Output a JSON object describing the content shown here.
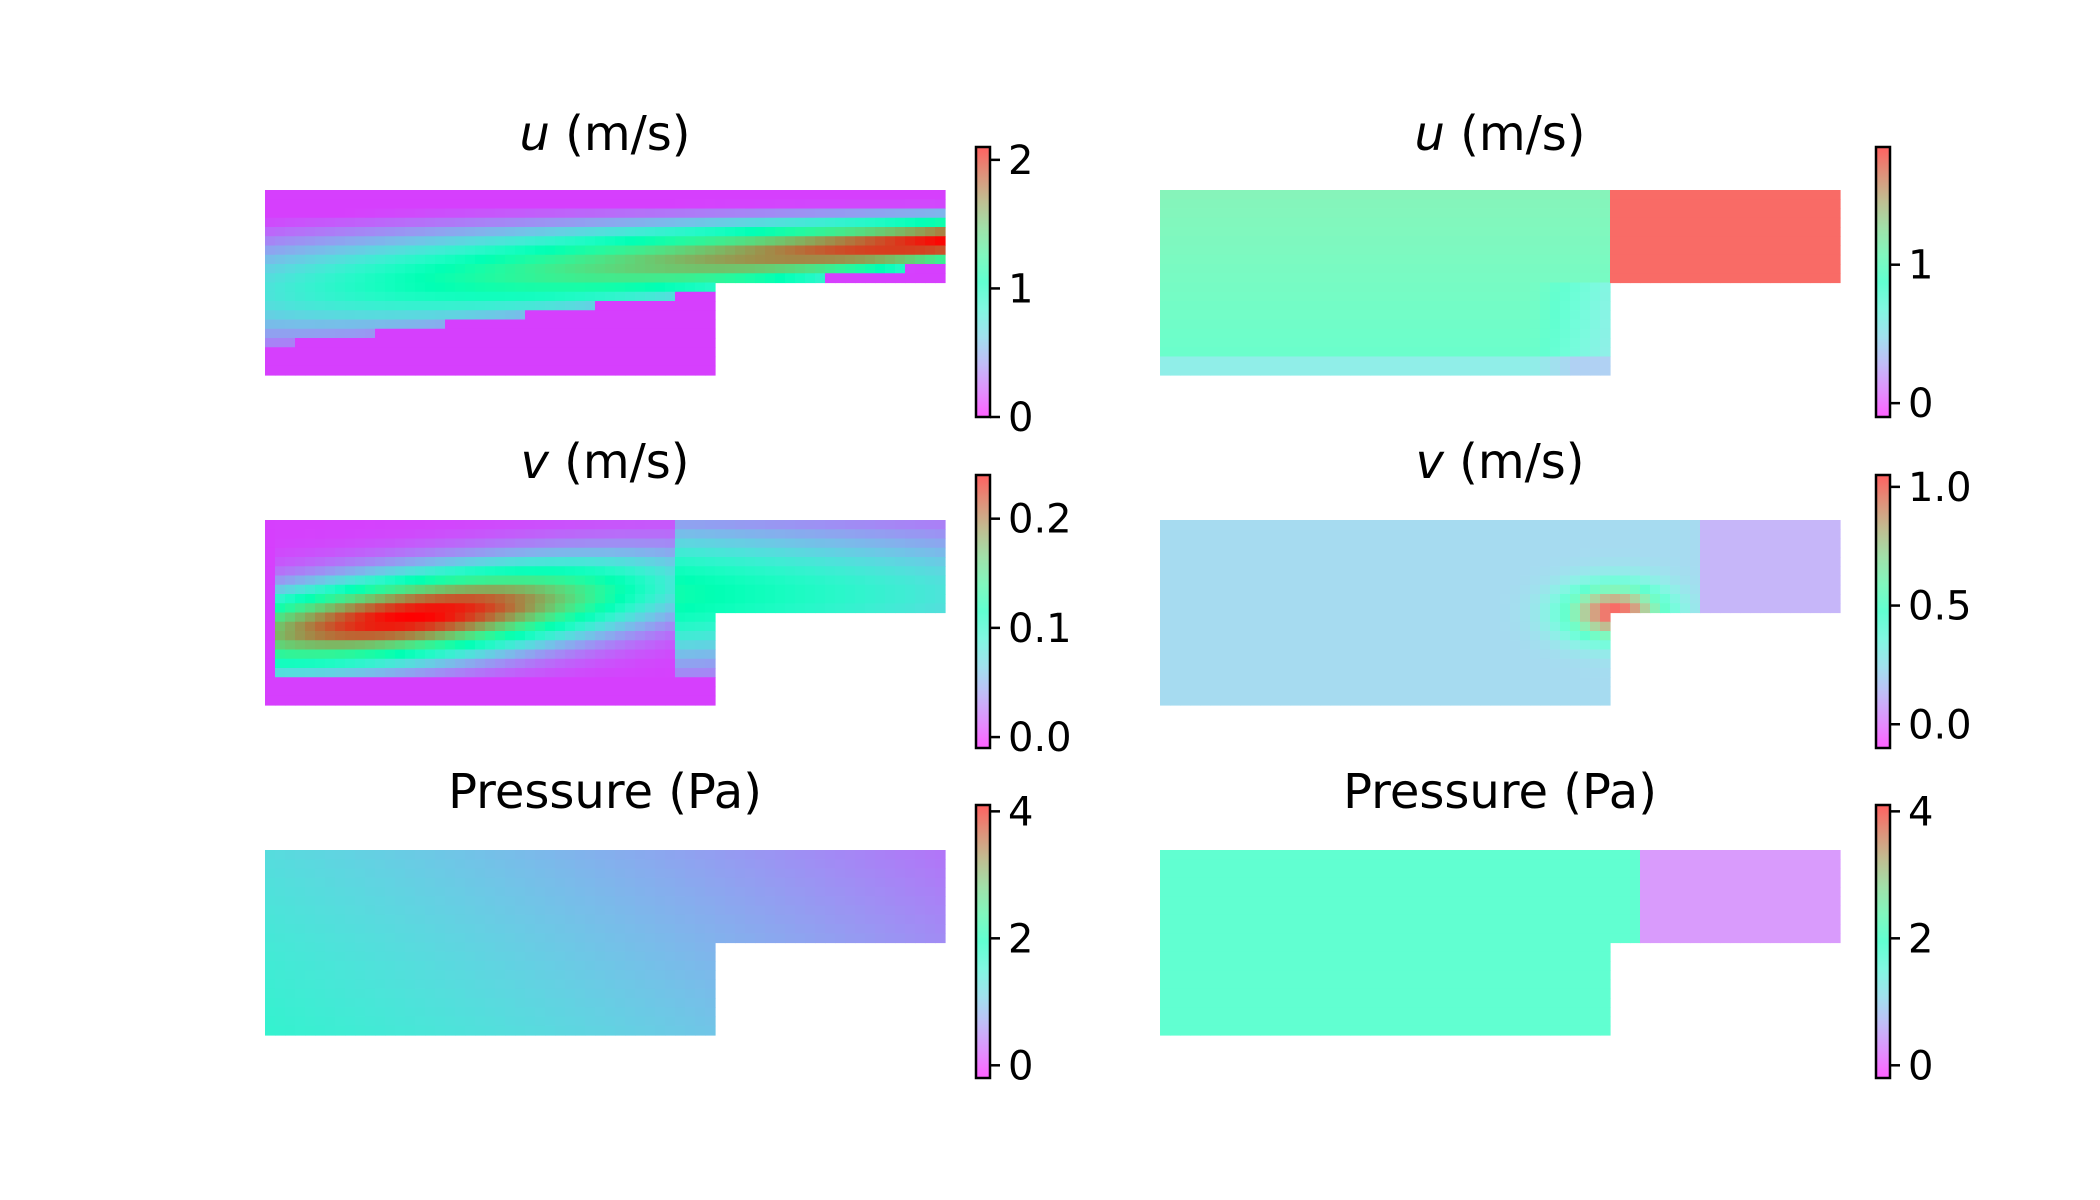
{
  "chart_data": [
    {
      "type": "heatmap",
      "panel": "left-top",
      "title_var": "u",
      "title_unit": " (m/s)",
      "colormap": "rainbow",
      "colorbar": {
        "min": 0,
        "max": 2.1,
        "ticks": [
          0,
          1,
          2
        ],
        "tick_labels": [
          "0",
          "1",
          "2"
        ]
      },
      "field": "jet",
      "value_max": 2.1
    },
    {
      "type": "heatmap",
      "panel": "right-top",
      "title_var": "u",
      "title_unit": " (m/s)",
      "colormap": "rainbow",
      "colorbar": {
        "min": -0.1,
        "max": 1.85,
        "ticks": [
          0,
          1
        ],
        "tick_labels": [
          "0",
          "1"
        ]
      },
      "field": "pinn_u",
      "value_max": 1.85
    },
    {
      "type": "heatmap",
      "panel": "left-middle",
      "title_var": "v",
      "title_unit": " (m/s)",
      "colormap": "rainbow",
      "colorbar": {
        "min": -0.01,
        "max": 0.24,
        "ticks": [
          0.0,
          0.1,
          0.2
        ],
        "tick_labels": [
          "0.0",
          "0.1",
          "0.2"
        ]
      },
      "field": "vortex",
      "value_max": 0.23
    },
    {
      "type": "heatmap",
      "panel": "right-middle",
      "title_var": "v",
      "title_unit": " (m/s)",
      "colormap": "rainbow",
      "colorbar": {
        "min": -0.1,
        "max": 1.05,
        "ticks": [
          0.0,
          0.5,
          1.0
        ],
        "tick_labels": [
          "0.0",
          "0.5",
          "1.0"
        ]
      },
      "field": "pinn_v",
      "value_max": 1.05
    },
    {
      "type": "heatmap",
      "panel": "left-bottom",
      "title_var": "",
      "title_unit": "Pressure (Pa)",
      "colormap": "rainbow",
      "colorbar": {
        "min": -0.2,
        "max": 4.1,
        "ticks": [
          0,
          2,
          4
        ],
        "tick_labels": [
          "0",
          "2",
          "4"
        ]
      },
      "field": "pressure",
      "value_max": 4.1
    },
    {
      "type": "heatmap",
      "panel": "right-bottom",
      "title_var": "",
      "title_unit": "Pressure (Pa)",
      "colormap": "rainbow",
      "colorbar": {
        "min": -0.2,
        "max": 4.1,
        "ticks": [
          0,
          2,
          4
        ],
        "tick_labels": [
          "0",
          "2",
          "4"
        ]
      },
      "field": "pinn_p",
      "value_max": 4.1
    }
  ]
}
